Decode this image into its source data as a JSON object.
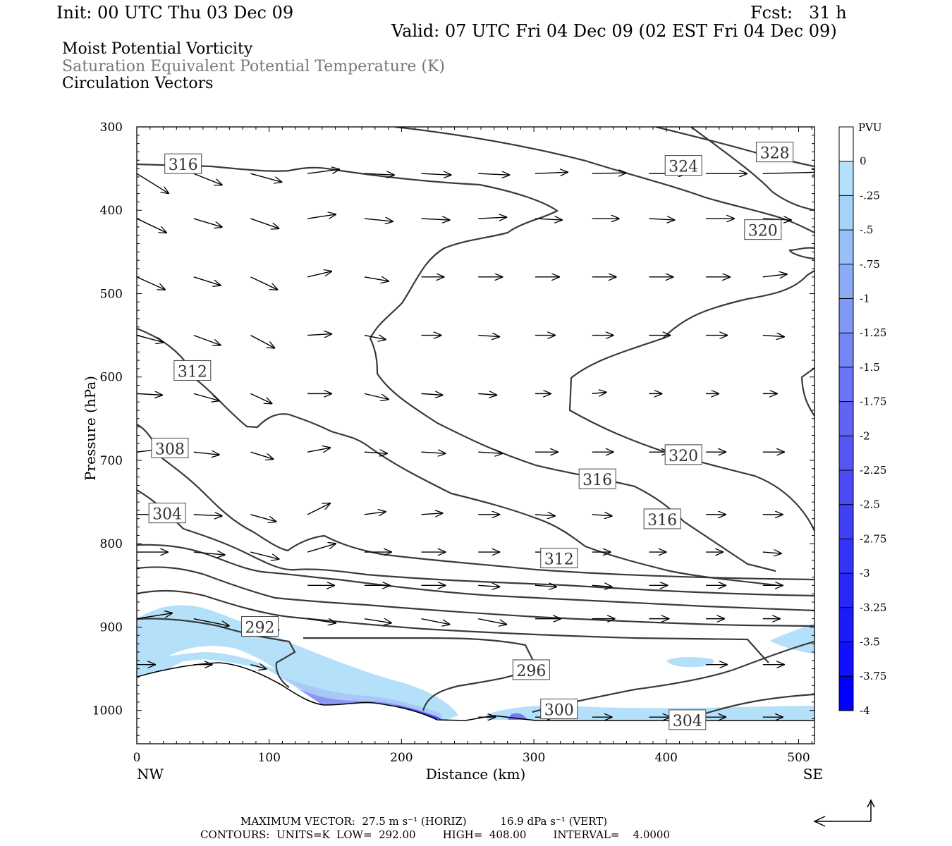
{
  "header": {
    "init": "Init: 00 UTC Thu 03 Dec 09",
    "fcst": "Fcst:   31 h",
    "valid": "Valid: 07 UTC Fri 04 Dec 09 (02 EST Fri 04 Dec 09)"
  },
  "fields": [
    "Moist Potential Vorticity",
    "Saturation Equivalent Potential Temperature (K)",
    "Circulation Vectors"
  ],
  "colors": {
    "contour": "#3a3a3a",
    "mpv_shade": [
      "#b4e0fa",
      "#a8c8f8",
      "#8c96f4",
      "#6464f0",
      "#3232f0",
      "#0000ff"
    ]
  },
  "footer": {
    "max_vector": "MAXIMUM VECTOR:  27.5 m s⁻¹ (HORIZ)          16.9 dPa s⁻¹ (VERT)",
    "contours": "CONTOURS:  UNITS=K  LOW=  292.00        HIGH=  408.00        INTERVAL=    4.0000",
    "reference_arrow_icon": "reference-vector-arrow"
  },
  "chart_data": {
    "type": "cross-section",
    "xlabel": "Distance (km)",
    "ylabel": "Pressure (hPa)",
    "xlim": [
      0,
      512
    ],
    "ylim": [
      1040,
      300
    ],
    "x_ticks": [
      0,
      100,
      200,
      300,
      400,
      500
    ],
    "y_ticks": [
      300,
      400,
      500,
      600,
      700,
      800,
      900,
      1000
    ],
    "x_end_labels": {
      "left": "NW",
      "right": "SE"
    },
    "colorbar": {
      "unit": "PVU",
      "levels": [
        "0",
        "-.25",
        "-.5",
        "-.75",
        "-1",
        "-1.25",
        "-1.5",
        "-1.75",
        "-2",
        "-2.25",
        "-2.5",
        "-2.75",
        "-3",
        "-3.25",
        "-3.5",
        "-3.75",
        "-4"
      ],
      "colors": [
        "#ffffff",
        "#b4e0fa",
        "#a5d2f9",
        "#98c0f8",
        "#8cabf7",
        "#8098f6",
        "#7485f5",
        "#6a74f4",
        "#6064f3",
        "#5656f2",
        "#4c4af3",
        "#4040f4",
        "#3434f6",
        "#2828f8",
        "#1c1cfa",
        "#1010fc",
        "#0000ff"
      ]
    },
    "contour_labels": [
      {
        "text": "316",
        "x": 35,
        "p": 345
      },
      {
        "text": "324",
        "x": 413,
        "p": 347
      },
      {
        "text": "328",
        "x": 482,
        "p": 331
      },
      {
        "text": "320",
        "x": 473,
        "p": 424
      },
      {
        "text": "312",
        "x": 42,
        "p": 593
      },
      {
        "text": "308",
        "x": 25,
        "p": 686
      },
      {
        "text": "320",
        "x": 413,
        "p": 694
      },
      {
        "text": "316",
        "x": 348,
        "p": 723
      },
      {
        "text": "316",
        "x": 397,
        "p": 771
      },
      {
        "text": "304",
        "x": 23,
        "p": 764
      },
      {
        "text": "312",
        "x": 319,
        "p": 818
      },
      {
        "text": "292",
        "x": 93,
        "p": 900
      },
      {
        "text": "296",
        "x": 298,
        "p": 952
      },
      {
        "text": "300",
        "x": 319,
        "p": 999
      },
      {
        "text": "304",
        "x": 416,
        "p": 1012
      }
    ]
  }
}
